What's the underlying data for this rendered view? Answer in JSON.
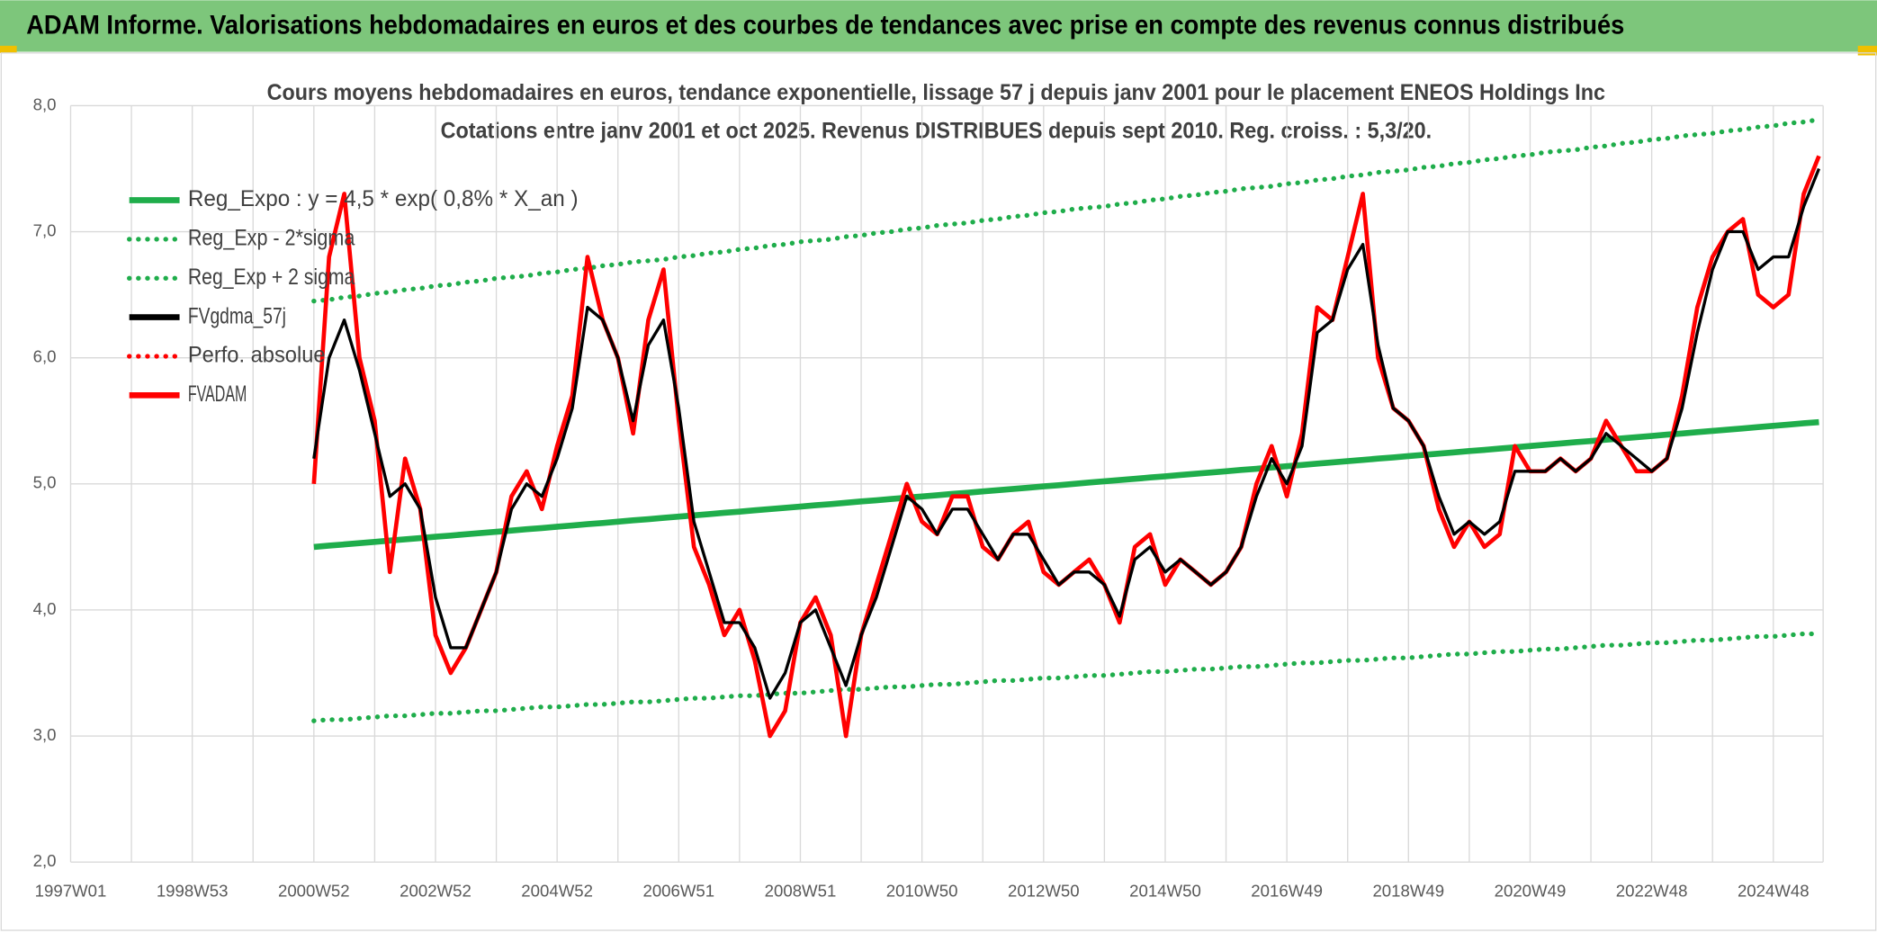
{
  "header": {
    "title": "ADAM Informe. Valorisations hebdomadaires en euros et des courbes de tendances avec prise en compte des revenus connus distribués"
  },
  "chart_data": {
    "type": "line",
    "title": "Cours moyens hebdomadaires en euros, tendance exponentielle, lissage 57 j depuis janv 2001 pour le placement ENEOS Holdings Inc",
    "subtitle": "Cotations entre janv 2001 et oct 2025. Revenus DISTRIBUES depuis sept 2010. Reg. croiss. : 5,3/20.",
    "categories": [
      "1997W01",
      null,
      null,
      null,
      null,
      null,
      null,
      null,
      "1998W53",
      null,
      null,
      null,
      null,
      null,
      null,
      null,
      "2000W52",
      null,
      null,
      null,
      null,
      null,
      null,
      null,
      "2002W52",
      null,
      null,
      null,
      null,
      null,
      null,
      null,
      "2004W52",
      null,
      null,
      null,
      null,
      null,
      null,
      null,
      "2006W51",
      null,
      null,
      null,
      null,
      null,
      null,
      null,
      "2008W51",
      null,
      null,
      null,
      null,
      null,
      null,
      null,
      "2010W50",
      null,
      null,
      null,
      null,
      null,
      null,
      null,
      "2012W50",
      null,
      null,
      null,
      null,
      null,
      null,
      null,
      "2014W50",
      null,
      null,
      null,
      null,
      null,
      null,
      null,
      "2016W49",
      null,
      null,
      null,
      null,
      null,
      null,
      null,
      "2018W49",
      null,
      null,
      null,
      null,
      null,
      null,
      null,
      "2020W49",
      null,
      null,
      null,
      null,
      null,
      null,
      null,
      "2022W48",
      null,
      null,
      null,
      null,
      null,
      null,
      null,
      "2024W48",
      null,
      null,
      null
    ],
    "ylim": [
      2,
      8
    ],
    "yticks": [
      {
        "value": 2,
        "label": "2,0"
      },
      {
        "value": 3,
        "label": "3,0"
      },
      {
        "value": 4,
        "label": "4,0"
      },
      {
        "value": 5,
        "label": "5,0"
      },
      {
        "value": 6,
        "label": "6,0"
      },
      {
        "value": 7,
        "label": "7,0"
      },
      {
        "value": 8,
        "label": "8,0"
      }
    ],
    "grid": true,
    "legend": "top-left",
    "series": [
      {
        "name": "Reg_Expo : y = 4,5 * exp( 0,8% *  X_an )",
        "color": "#1fad4b",
        "line_style": "solid",
        "values": [
          null,
          null,
          null,
          null,
          null,
          null,
          null,
          null,
          null,
          null,
          null,
          null,
          null,
          null,
          null,
          null,
          4.5,
          4.51,
          4.52,
          4.53,
          4.54,
          4.55,
          4.56,
          4.57,
          4.58,
          4.59,
          4.6,
          4.61,
          4.62,
          4.63,
          4.64,
          4.65,
          4.66,
          4.67,
          4.68,
          4.69,
          4.7,
          4.71,
          4.72,
          4.73,
          4.74,
          4.75,
          4.76,
          4.77,
          4.78,
          4.79,
          4.8,
          4.81,
          4.82,
          4.83,
          4.84,
          4.85,
          4.86,
          4.87,
          4.88,
          4.89,
          4.9,
          4.91,
          4.92,
          4.93,
          4.94,
          4.95,
          4.96,
          4.97,
          4.98,
          4.99,
          5.0,
          5.01,
          5.02,
          5.03,
          5.04,
          5.05,
          5.06,
          5.07,
          5.08,
          5.09,
          5.1,
          5.11,
          5.12,
          5.13,
          5.14,
          5.15,
          5.16,
          5.17,
          5.18,
          5.19,
          5.2,
          5.21,
          5.22,
          5.23,
          5.24,
          5.25,
          5.26,
          5.27,
          5.28,
          5.29,
          5.3,
          5.31,
          5.32,
          5.33,
          5.34,
          5.35,
          5.36,
          5.37,
          5.38,
          5.39,
          5.4,
          5.41,
          5.42,
          5.43,
          5.44,
          5.45,
          5.46,
          5.47,
          5.48,
          5.49
        ]
      },
      {
        "name": "Reg_Exp - 2*sigma",
        "color": "#1fad4b",
        "line_style": "dotted",
        "values": [
          null,
          null,
          null,
          null,
          null,
          null,
          null,
          null,
          null,
          null,
          null,
          null,
          null,
          null,
          null,
          null,
          3.12,
          3.13,
          3.13,
          3.14,
          3.15,
          3.16,
          3.16,
          3.17,
          3.18,
          3.18,
          3.19,
          3.2,
          3.2,
          3.21,
          3.22,
          3.23,
          3.23,
          3.24,
          3.25,
          3.25,
          3.26,
          3.27,
          3.27,
          3.28,
          3.29,
          3.3,
          3.3,
          3.31,
          3.32,
          3.32,
          3.33,
          3.34,
          3.34,
          3.35,
          3.36,
          3.37,
          3.37,
          3.38,
          3.39,
          3.39,
          3.4,
          3.41,
          3.41,
          3.42,
          3.43,
          3.44,
          3.44,
          3.45,
          3.46,
          3.46,
          3.47,
          3.48,
          3.48,
          3.49,
          3.5,
          3.51,
          3.51,
          3.52,
          3.53,
          3.53,
          3.54,
          3.55,
          3.55,
          3.56,
          3.57,
          3.58,
          3.58,
          3.59,
          3.6,
          3.6,
          3.61,
          3.62,
          3.62,
          3.63,
          3.64,
          3.65,
          3.65,
          3.66,
          3.67,
          3.67,
          3.68,
          3.69,
          3.69,
          3.7,
          3.71,
          3.72,
          3.72,
          3.73,
          3.74,
          3.74,
          3.75,
          3.76,
          3.76,
          3.77,
          3.78,
          3.79,
          3.79,
          3.8,
          3.81,
          3.81
        ]
      },
      {
        "name": "Reg_Exp + 2 sigma",
        "color": "#1fad4b",
        "line_style": "dotted",
        "values": [
          null,
          null,
          null,
          null,
          null,
          null,
          null,
          null,
          null,
          null,
          null,
          null,
          null,
          null,
          null,
          null,
          6.45,
          6.46,
          6.48,
          6.49,
          6.51,
          6.52,
          6.54,
          6.55,
          6.57,
          6.58,
          6.6,
          6.61,
          6.63,
          6.64,
          6.65,
          6.67,
          6.68,
          6.7,
          6.71,
          6.73,
          6.74,
          6.76,
          6.77,
          6.78,
          6.8,
          6.81,
          6.83,
          6.84,
          6.86,
          6.87,
          6.89,
          6.9,
          6.92,
          6.93,
          6.94,
          6.96,
          6.97,
          6.99,
          7.0,
          7.02,
          7.03,
          7.05,
          7.06,
          7.07,
          7.09,
          7.1,
          7.12,
          7.13,
          7.15,
          7.16,
          7.18,
          7.19,
          7.2,
          7.22,
          7.23,
          7.25,
          7.26,
          7.28,
          7.29,
          7.31,
          7.32,
          7.34,
          7.35,
          7.36,
          7.38,
          7.39,
          7.41,
          7.42,
          7.44,
          7.45,
          7.47,
          7.48,
          7.49,
          7.51,
          7.52,
          7.54,
          7.55,
          7.57,
          7.58,
          7.6,
          7.61,
          7.63,
          7.64,
          7.65,
          7.67,
          7.68,
          7.7,
          7.71,
          7.73,
          7.74,
          7.76,
          7.77,
          7.78,
          7.8,
          7.81,
          7.83,
          7.84,
          7.86,
          7.87,
          7.89
        ]
      },
      {
        "name": "FVgdma_57j",
        "color": "#000000",
        "line_style": "solid",
        "values": [
          null,
          null,
          null,
          null,
          null,
          null,
          null,
          null,
          null,
          null,
          null,
          null,
          null,
          null,
          null,
          null,
          5.2,
          6.0,
          6.3,
          5.9,
          5.4,
          4.9,
          5.0,
          4.8,
          4.1,
          3.7,
          3.7,
          4.0,
          4.3,
          4.8,
          5.0,
          4.9,
          5.2,
          5.6,
          6.4,
          6.3,
          6.0,
          5.5,
          6.1,
          6.3,
          5.6,
          4.7,
          4.3,
          3.9,
          3.9,
          3.7,
          3.3,
          3.5,
          3.9,
          4.0,
          3.7,
          3.4,
          3.8,
          4.1,
          4.5,
          4.9,
          4.8,
          4.6,
          4.8,
          4.8,
          4.6,
          4.4,
          4.6,
          4.6,
          4.4,
          4.2,
          4.3,
          4.3,
          4.2,
          3.95,
          4.4,
          4.5,
          4.3,
          4.4,
          4.3,
          4.2,
          4.3,
          4.5,
          4.9,
          5.2,
          5.0,
          5.3,
          6.2,
          6.3,
          6.7,
          6.9,
          6.1,
          5.6,
          5.5,
          5.3,
          4.9,
          4.6,
          4.7,
          4.6,
          4.7,
          5.1,
          5.1,
          5.1,
          5.2,
          5.1,
          5.2,
          5.4,
          5.3,
          5.2,
          5.1,
          5.2,
          5.6,
          6.2,
          6.7,
          7.0,
          7.0,
          6.7,
          6.8,
          6.8,
          7.2,
          7.5
        ]
      },
      {
        "name": "Perfo. absolue",
        "color": "#ff0000",
        "line_style": "dotted"
      },
      {
        "name": "FVADAM",
        "color": "#ff0000",
        "line_style": "solid",
        "values": [
          null,
          null,
          null,
          null,
          null,
          null,
          null,
          null,
          null,
          null,
          null,
          null,
          null,
          null,
          null,
          null,
          5.0,
          6.8,
          7.3,
          6.0,
          5.5,
          4.3,
          5.2,
          4.8,
          3.8,
          3.5,
          3.7,
          4.0,
          4.3,
          4.9,
          5.1,
          4.8,
          5.3,
          5.7,
          6.8,
          6.3,
          6.0,
          5.4,
          6.3,
          6.7,
          5.5,
          4.5,
          4.2,
          3.8,
          4.0,
          3.6,
          3.0,
          3.2,
          3.9,
          4.1,
          3.8,
          3.0,
          3.8,
          4.2,
          4.6,
          5.0,
          4.7,
          4.6,
          4.9,
          4.9,
          4.5,
          4.4,
          4.6,
          4.7,
          4.3,
          4.2,
          4.3,
          4.4,
          4.2,
          3.9,
          4.5,
          4.6,
          4.2,
          4.4,
          4.3,
          4.2,
          4.3,
          4.5,
          5.0,
          5.3,
          4.9,
          5.4,
          6.4,
          6.3,
          6.8,
          7.3,
          6.0,
          5.6,
          5.5,
          5.3,
          4.8,
          4.5,
          4.7,
          4.5,
          4.6,
          5.3,
          5.1,
          5.1,
          5.2,
          5.1,
          5.2,
          5.5,
          5.3,
          5.1,
          5.1,
          5.2,
          5.7,
          6.4,
          6.8,
          7.0,
          7.1,
          6.5,
          6.4,
          6.5,
          7.3,
          7.6
        ]
      }
    ]
  }
}
